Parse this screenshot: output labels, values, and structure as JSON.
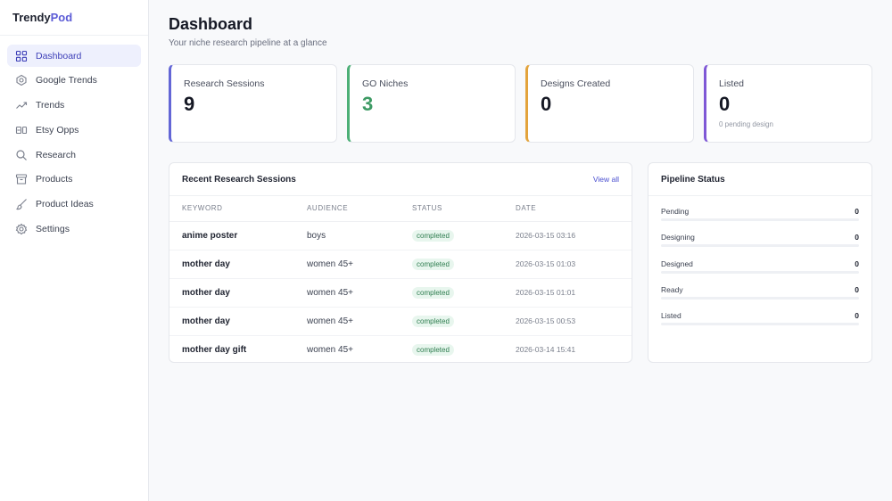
{
  "brand": {
    "name_part1": "Trendy",
    "name_part2": "Pod",
    "accent_color": "#5b5bd6"
  },
  "sidebar": {
    "items": [
      {
        "label": "Dashboard",
        "icon": "grid-icon",
        "active": true
      },
      {
        "label": "Google Trends",
        "icon": "google-icon",
        "active": false
      },
      {
        "label": "Trends",
        "icon": "trending-up-icon",
        "active": false
      },
      {
        "label": "Etsy Opps",
        "icon": "etsy-icon",
        "active": false
      },
      {
        "label": "Research",
        "icon": "search-icon",
        "active": false
      },
      {
        "label": "Products",
        "icon": "box-icon",
        "active": false
      },
      {
        "label": "Product Ideas",
        "icon": "brush-icon",
        "active": false
      },
      {
        "label": "Settings",
        "icon": "gear-icon",
        "active": false
      }
    ]
  },
  "header": {
    "title": "Dashboard",
    "subtitle": "Your niche research pipeline at a glance"
  },
  "stats": [
    {
      "label": "Research Sessions",
      "value": "9",
      "color": "#6366d6",
      "value_color": "#151824",
      "note": ""
    },
    {
      "label": "GO Niches",
      "value": "3",
      "color": "#4caf76",
      "value_color": "#3d9a64",
      "note": ""
    },
    {
      "label": "Designs Created",
      "value": "0",
      "color": "#e3a33b",
      "value_color": "#151824",
      "note": ""
    },
    {
      "label": "Listed",
      "value": "0",
      "color": "#7f58d6",
      "value_color": "#151824",
      "note": "0 pending design"
    }
  ],
  "sessions": {
    "title": "Recent Research Sessions",
    "view_all": "View all",
    "columns": [
      "KEYWORD",
      "AUDIENCE",
      "STATUS",
      "DATE"
    ],
    "rows": [
      {
        "keyword": "anime poster",
        "audience": "boys",
        "status": "completed",
        "date": "2026-03-15 03:16"
      },
      {
        "keyword": "mother day",
        "audience": "women 45+",
        "status": "completed",
        "date": "2026-03-15 01:03"
      },
      {
        "keyword": "mother day",
        "audience": "women 45+",
        "status": "completed",
        "date": "2026-03-15 01:01"
      },
      {
        "keyword": "mother day",
        "audience": "women 45+",
        "status": "completed",
        "date": "2026-03-15 00:53"
      },
      {
        "keyword": "mother day gift",
        "audience": "women 45+",
        "status": "completed",
        "date": "2026-03-14 15:41"
      }
    ]
  },
  "pipeline": {
    "title": "Pipeline Status",
    "rows": [
      {
        "label": "Pending",
        "value": "0",
        "fraction": 0
      },
      {
        "label": "Designing",
        "value": "0",
        "fraction": 0
      },
      {
        "label": "Designed",
        "value": "0",
        "fraction": 0
      },
      {
        "label": "Ready",
        "value": "0",
        "fraction": 0
      },
      {
        "label": "Listed",
        "value": "0",
        "fraction": 0
      }
    ]
  }
}
